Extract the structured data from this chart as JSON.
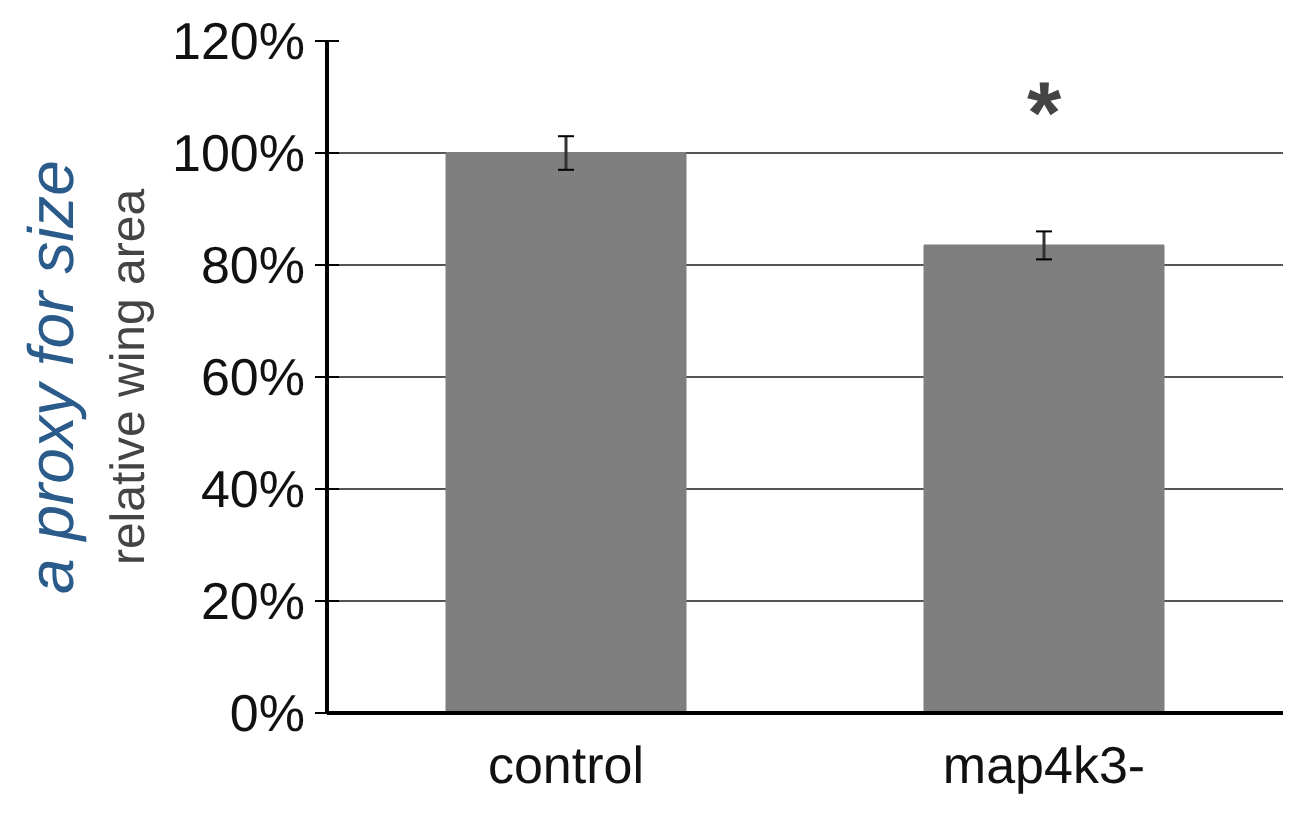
{
  "chart_data": {
    "type": "bar",
    "ylabel": "relative wing area",
    "categories": [
      "control",
      "map4k3-"
    ],
    "values": [
      100,
      83.5
    ],
    "errors": [
      3,
      2.5
    ],
    "color": "#7f7f7f",
    "ylim": [
      0,
      120
    ],
    "yticks": [
      {
        "value": 0,
        "label": "0%"
      },
      {
        "value": 20,
        "label": "20%"
      },
      {
        "value": 40,
        "label": "40%"
      },
      {
        "value": 60,
        "label": "60%"
      },
      {
        "value": 80,
        "label": "80%"
      },
      {
        "value": 100,
        "label": "100%"
      },
      {
        "value": 120,
        "label": "120%"
      }
    ],
    "grid": "y",
    "annotations": [
      "*",
      "a proxy for size"
    ]
  }
}
